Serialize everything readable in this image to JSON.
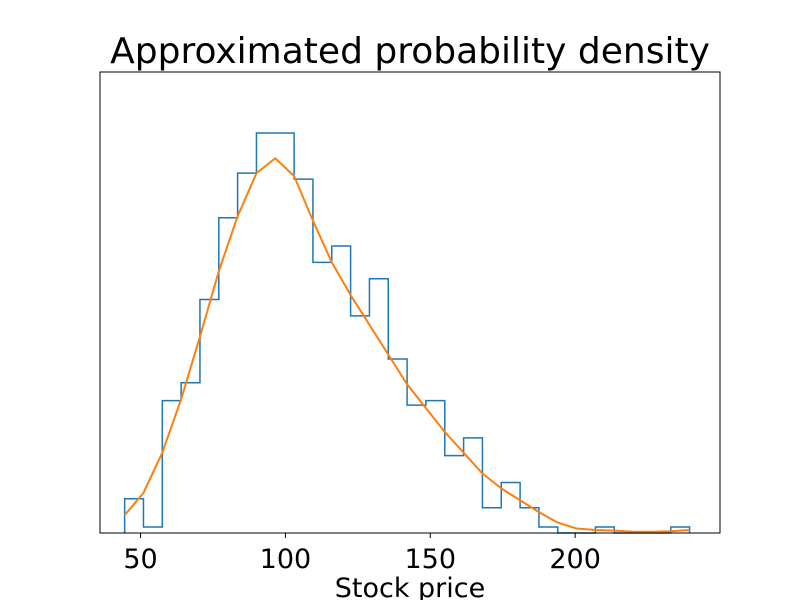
{
  "chart_data": {
    "type": "histogram",
    "title": "Approximated probability density",
    "xlabel": "Stock price",
    "ylabel": "",
    "xlim": [
      36,
      250
    ],
    "ylim": [
      0,
      0.0155
    ],
    "x_ticks": [
      50,
      100,
      150,
      200
    ],
    "y_ticks_visible": false,
    "grid": false,
    "legend": "none",
    "histogram": {
      "name": "",
      "color": "#1f77b4",
      "bin_edges": [
        44.5,
        51.0,
        57.5,
        64.0,
        70.5,
        77.0,
        83.5,
        90.0,
        96.5,
        103.0,
        109.5,
        116.0,
        122.5,
        129.0,
        135.5,
        142.0,
        148.5,
        155.0,
        161.5,
        168.0,
        174.5,
        181.0,
        187.5,
        194.0,
        200.5,
        207.0,
        213.5,
        220.0,
        226.5,
        233.0,
        239.5
      ],
      "densities": [
        0.00115,
        0.0002,
        0.00445,
        0.00505,
        0.00785,
        0.0106,
        0.0121,
        0.01345,
        0.01345,
        0.0119,
        0.0091,
        0.00965,
        0.0073,
        0.00855,
        0.00585,
        0.0043,
        0.00445,
        0.0026,
        0.0032,
        0.00085,
        0.0017,
        0.00085,
        0.0002,
        0.0,
        0.0,
        0.0002,
        0.0,
        0.0,
        0.0,
        0.0002
      ]
    },
    "density_curve": {
      "name": "",
      "color": "#ff7f0e",
      "x": [
        44.5,
        51.0,
        57.5,
        64.0,
        70.5,
        77.0,
        83.5,
        90.0,
        96.5,
        103.0,
        109.5,
        116.0,
        122.5,
        129.0,
        135.5,
        142.0,
        148.5,
        155.0,
        161.5,
        168.0,
        174.5,
        181.0,
        187.5,
        194.0,
        200.5,
        207.0,
        213.5,
        220.0,
        226.5,
        233.0,
        239.5
      ],
      "y": [
        0.0006,
        0.00135,
        0.0027,
        0.0045,
        0.0066,
        0.0088,
        0.01065,
        0.0121,
        0.0126,
        0.012,
        0.0105,
        0.0091,
        0.008,
        0.007,
        0.006,
        0.005,
        0.0042,
        0.0034,
        0.0027,
        0.002,
        0.0015,
        0.0011,
        0.0007,
        0.00035,
        0.00015,
        0.0001,
        8e-05,
        4e-05,
        4e-05,
        6e-05,
        0.0001
      ]
    }
  }
}
